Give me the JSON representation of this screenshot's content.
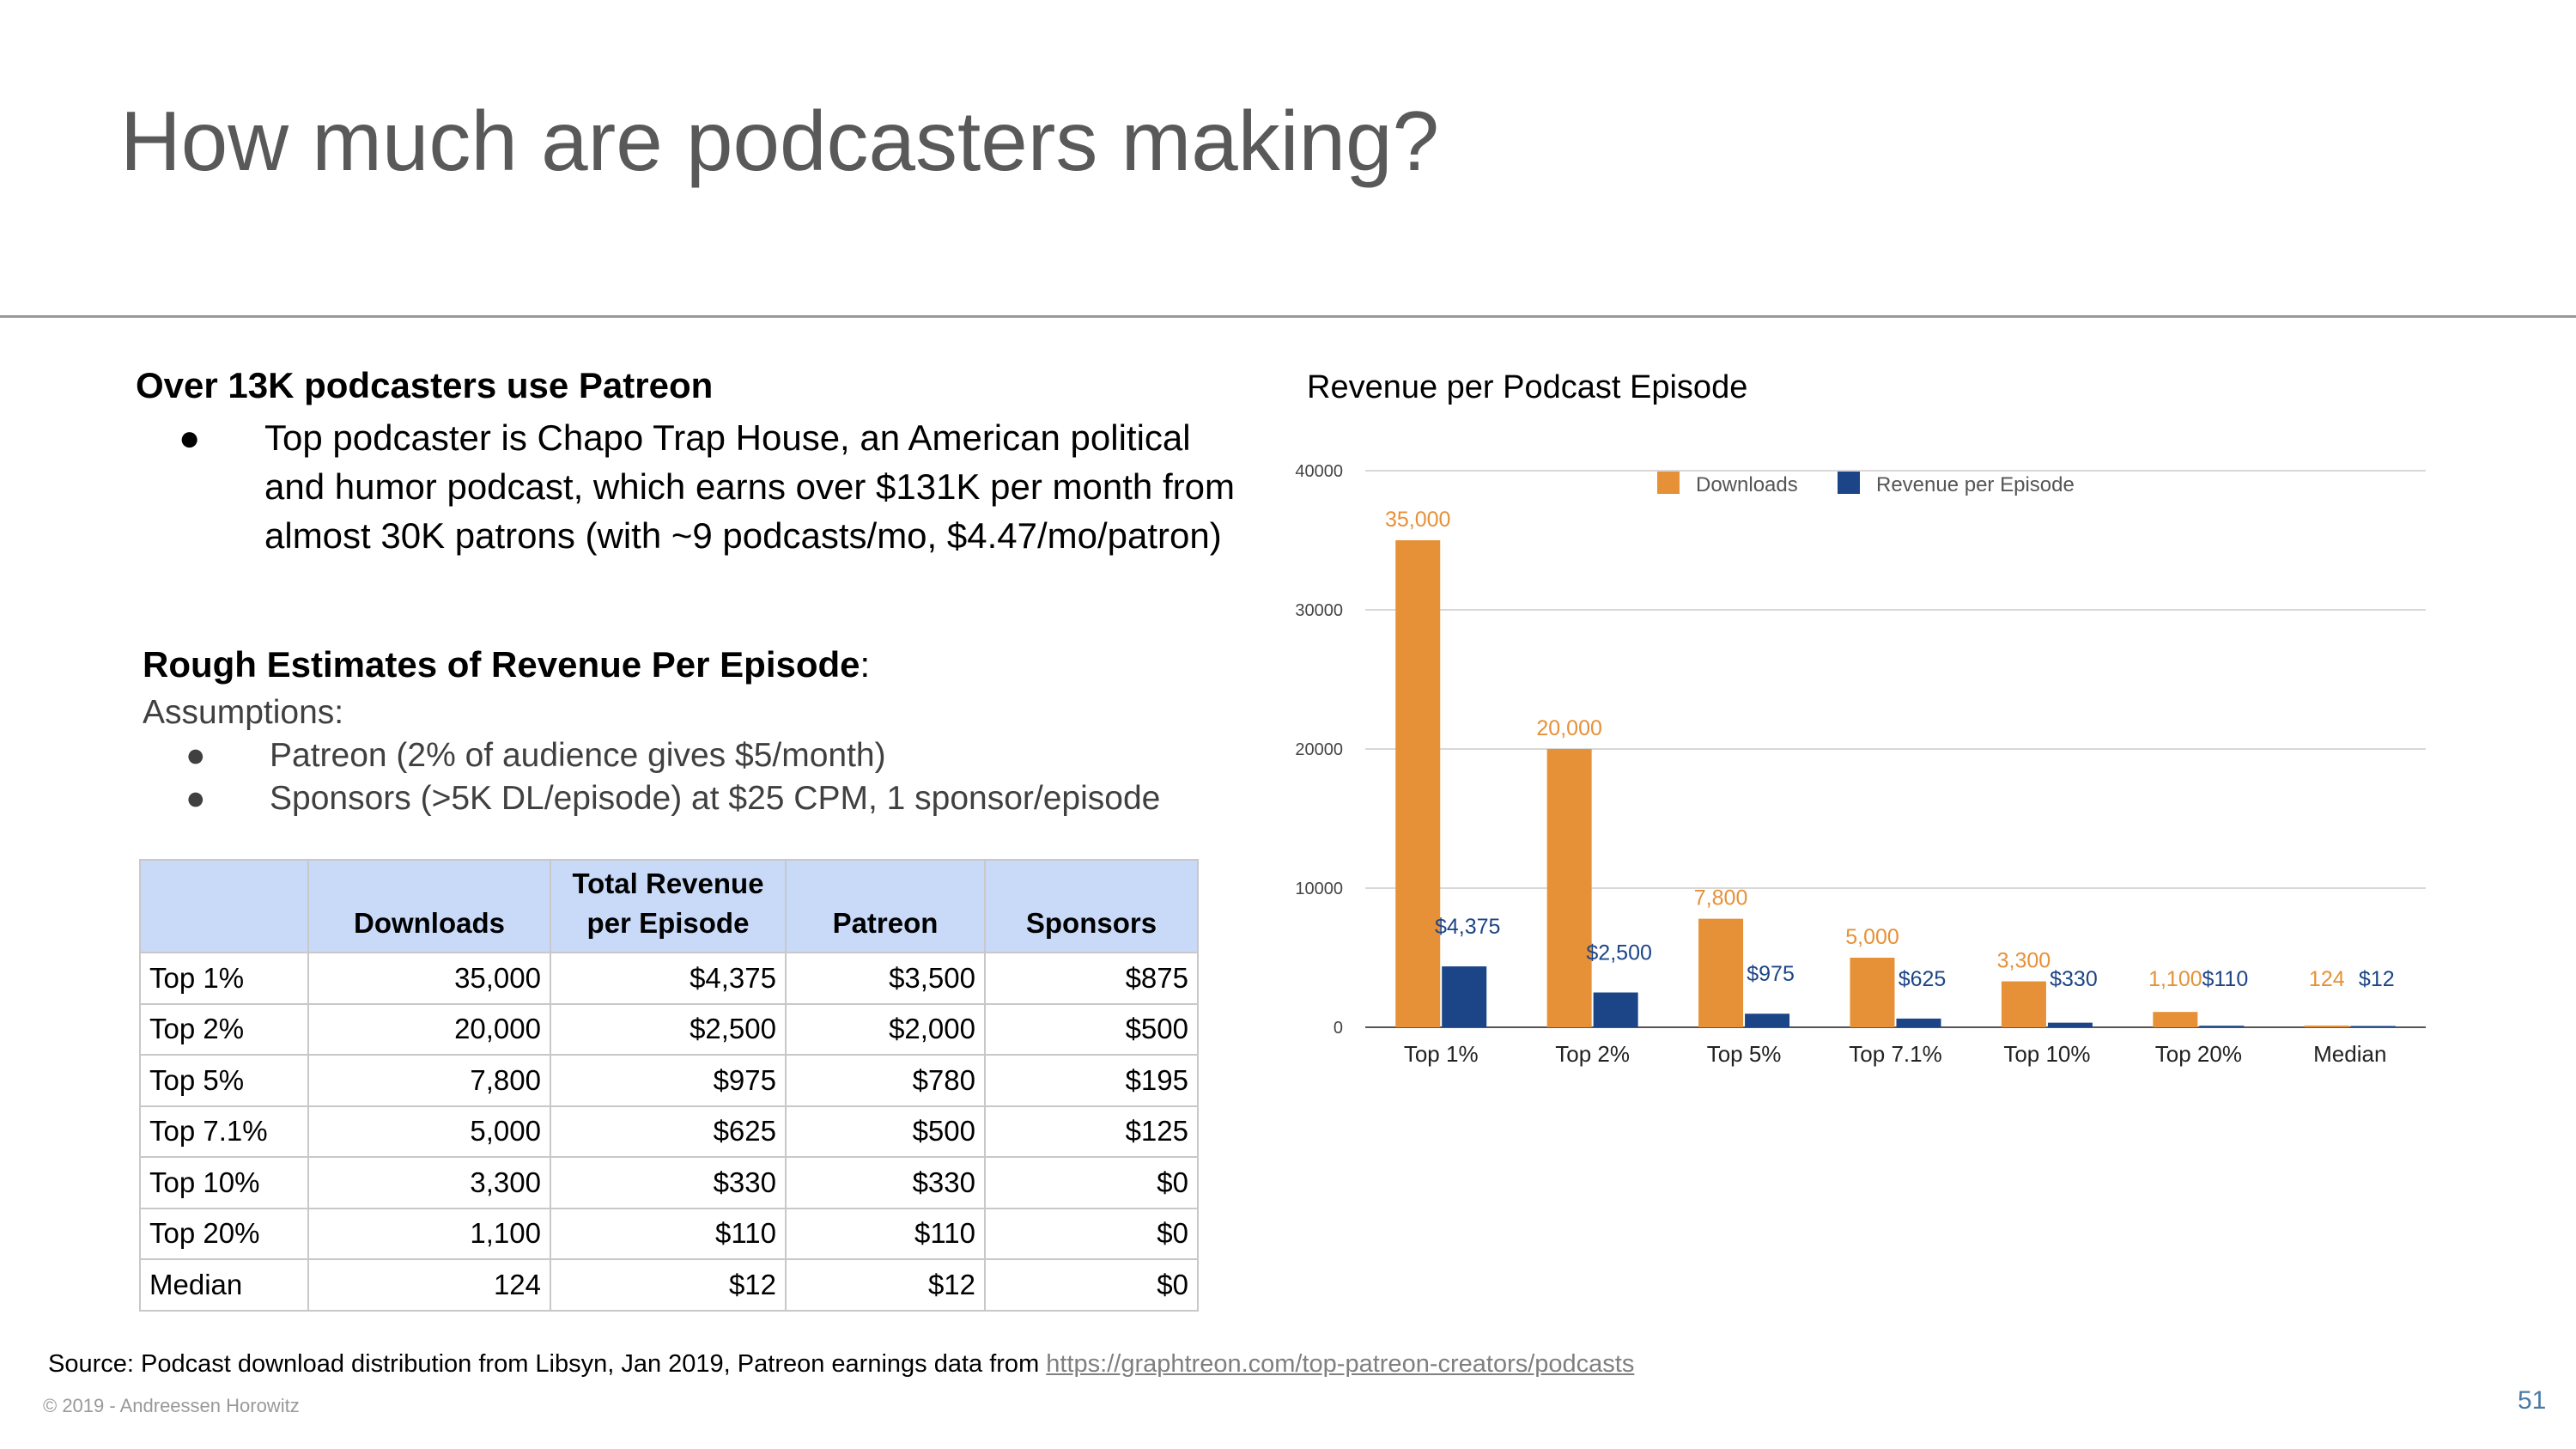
{
  "slide": {
    "title": "How much are podcasters making?",
    "patreon_heading": "Over 13K podcasters use Patreon",
    "patreon_bullet": "Top podcaster is Chapo Trap House, an American political and humor podcast, which earns over $131K per month from almost 30K patrons (with ~9 podcasts/mo, $4.47/mo/patron)",
    "estimates_heading": "Rough Estimates of Revenue Per Episode",
    "estimates_colon": ":",
    "assumptions_label": "Assumptions:",
    "assumptions": [
      "Patreon (2% of audience gives $5/month)",
      "Sponsors (>5K DL/episode) at $25 CPM, 1 sponsor/episode"
    ],
    "bullet_glyph": "●",
    "source_text": "Source: Podcast download distribution from Libsyn, Jan 2019, Patreon earnings data from ",
    "source_link": "https://graphtreon.com/top-patreon-creators/podcasts",
    "copyright": "© 2019 - Andreessen Horowitz",
    "page_number": "51"
  },
  "table": {
    "headers": [
      "",
      "Downloads",
      "Total Revenue per Episode",
      "Patreon",
      "Sponsors"
    ],
    "rows": [
      [
        "Top 1%",
        "35,000",
        "$4,375",
        "$3,500",
        "$875"
      ],
      [
        "Top 2%",
        "20,000",
        "$2,500",
        "$2,000",
        "$500"
      ],
      [
        "Top 5%",
        "7,800",
        "$975",
        "$780",
        "$195"
      ],
      [
        "Top 7.1%",
        "5,000",
        "$625",
        "$500",
        "$125"
      ],
      [
        "Top 10%",
        "3,300",
        "$330",
        "$330",
        "$0"
      ],
      [
        "Top 20%",
        "1,100",
        "$110",
        "$110",
        "$0"
      ],
      [
        "Median",
        "124",
        "$12",
        "$12",
        "$0"
      ]
    ]
  },
  "chart_data": {
    "type": "bar",
    "title": "Revenue per Podcast Episode",
    "categories": [
      "Top 1%",
      "Top 2%",
      "Top 5%",
      "Top 7.1%",
      "Top 10%",
      "Top 20%",
      "Median"
    ],
    "series": [
      {
        "name": "Downloads",
        "values": [
          35000,
          20000,
          7800,
          5000,
          3300,
          1100,
          124
        ],
        "labels": [
          "35,000",
          "20,000",
          "7,800",
          "5,000",
          "3,300",
          "1,100",
          "124"
        ],
        "color": "#e69138"
      },
      {
        "name": "Revenue per Episode",
        "values": [
          4375,
          2500,
          975,
          625,
          330,
          110,
          12
        ],
        "labels": [
          "$4,375",
          "$2,500",
          "$975",
          "$625",
          "$330",
          "$110",
          "$12"
        ],
        "color": "#1c4587"
      }
    ],
    "ylim": [
      0,
      40000
    ],
    "yticks": [
      0,
      10000,
      20000,
      30000,
      40000
    ],
    "grid": true,
    "legend": "top-center",
    "xlabel": "",
    "ylabel": ""
  }
}
